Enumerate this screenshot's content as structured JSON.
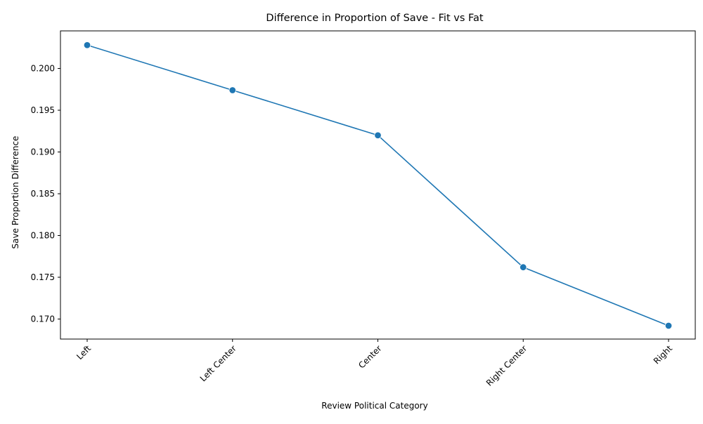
{
  "colors": {
    "line": "#1f77b4",
    "marker": "#1f77b4",
    "axis": "#000000",
    "background": "#ffffff"
  },
  "chart_data": {
    "type": "line",
    "title": "Difference in Proportion of Save - Fit vs Fat",
    "xlabel": "Review Political Category",
    "ylabel": "Save Proportion Difference",
    "categories": [
      "Left",
      "Left Center",
      "Center",
      "Right Center",
      "Right"
    ],
    "series": [
      {
        "values": [
          0.2028,
          0.1974,
          0.192,
          0.1762,
          0.1692
        ]
      }
    ],
    "ylim": [
      0.1676,
      0.2045
    ],
    "yticks": [
      0.17,
      0.175,
      0.18,
      0.185,
      0.19,
      0.195,
      0.2
    ],
    "ytick_labels": [
      "0.170",
      "0.175",
      "0.180",
      "0.185",
      "0.190",
      "0.195",
      "0.200"
    ],
    "x_tick_rotation_deg": 45,
    "markers": true,
    "grid": false,
    "legend": false
  }
}
